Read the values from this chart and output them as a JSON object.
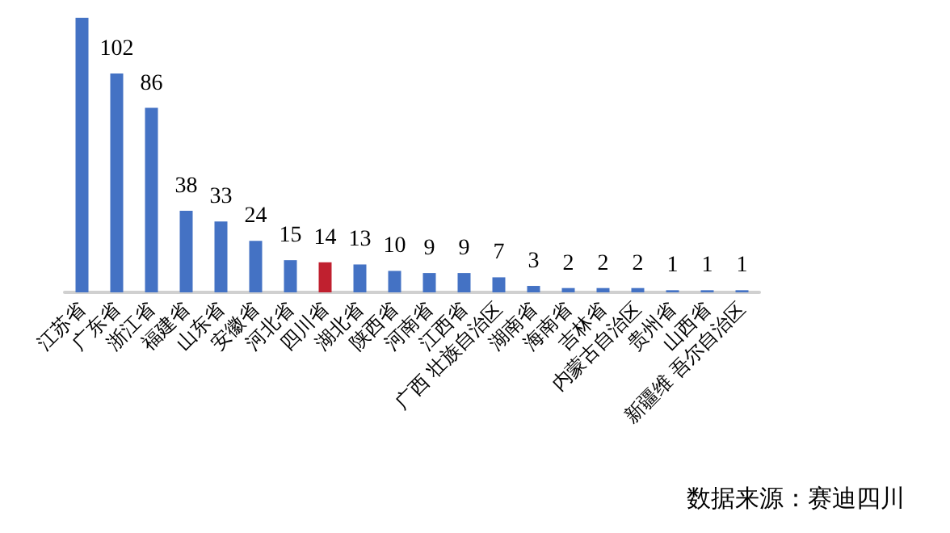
{
  "chart_data": {
    "type": "bar",
    "categories": [
      "江苏省",
      "广东省",
      "浙江省",
      "福建省",
      "山东省",
      "安徽省",
      "河北省",
      "四川省",
      "湖北省",
      "陕西省",
      "河南省",
      "江西省",
      "广西 壮族自治区",
      "湖南省",
      "海南省",
      "吉林省",
      "内蒙古自治区",
      "贵州省",
      "山西省",
      "新疆维 吾尔自治区"
    ],
    "values": [
      128,
      102,
      86,
      38,
      33,
      24,
      15,
      14,
      13,
      10,
      9,
      9,
      7,
      3,
      2,
      2,
      2,
      1,
      1,
      1
    ],
    "value_labels": [
      null,
      "102",
      "86",
      "38",
      "33",
      "24",
      "15",
      "14",
      "13",
      "10",
      "9",
      "9",
      "7",
      "3",
      "2",
      "2",
      "2",
      "1",
      "1",
      "1"
    ],
    "colors": [
      "#4472c4",
      "#4472c4",
      "#4472c4",
      "#4472c4",
      "#4472c4",
      "#4472c4",
      "#4472c4",
      "#c0202f",
      "#4472c4",
      "#4472c4",
      "#4472c4",
      "#4472c4",
      "#4472c4",
      "#4472c4",
      "#4472c4",
      "#4472c4",
      "#4472c4",
      "#4472c4",
      "#4472c4",
      "#4472c4"
    ],
    "annotations": [
      "数据来源：赛迪四川"
    ]
  }
}
